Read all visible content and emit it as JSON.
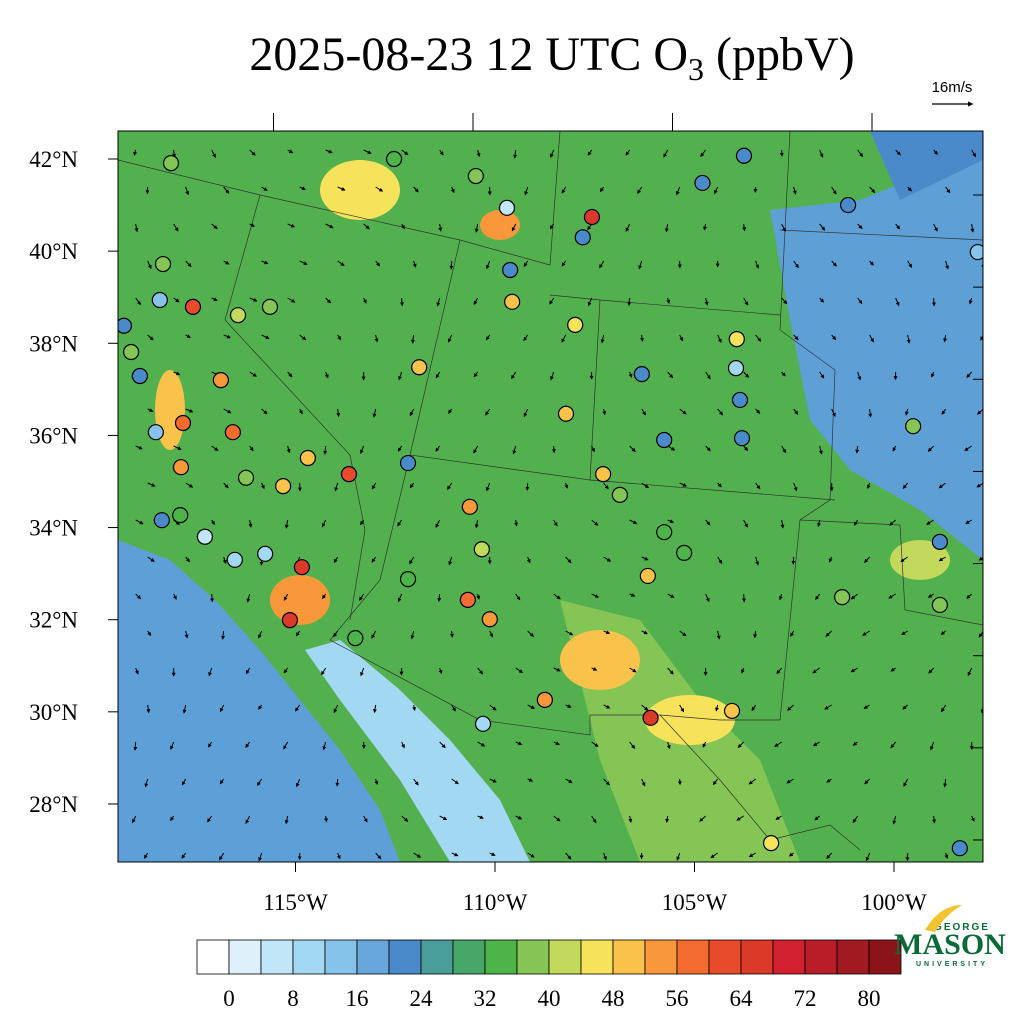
{
  "title": {
    "main": "2025-08-23 12 UTC O",
    "sub": "3",
    "end": " (ppbV)"
  },
  "wind_reference": "16m/s",
  "lat_ticks": [
    {
      "value": 42,
      "label": "42°N"
    },
    {
      "value": 40,
      "label": "40°N"
    },
    {
      "value": 38,
      "label": "38°N"
    },
    {
      "value": 36,
      "label": "36°N"
    },
    {
      "value": 34,
      "label": "34°N"
    },
    {
      "value": 32,
      "label": "32°N"
    },
    {
      "value": 30,
      "label": "30°N"
    },
    {
      "value": 28,
      "label": "28°N"
    }
  ],
  "lon_ticks": [
    {
      "value": -115,
      "label": "115°W"
    },
    {
      "value": -110,
      "label": "110°W"
    },
    {
      "value": -105,
      "label": "105°W"
    },
    {
      "value": -100,
      "label": "100°W"
    }
  ],
  "colorbar": {
    "levels": [
      0,
      4,
      8,
      12,
      16,
      20,
      24,
      28,
      32,
      36,
      40,
      44,
      48,
      52,
      56,
      60,
      64,
      68,
      72,
      76,
      80
    ],
    "ticks": [
      0,
      8,
      16,
      24,
      32,
      40,
      48,
      56,
      64,
      72,
      80
    ],
    "colors": [
      "#ffffff",
      "#ddf1fa",
      "#c0e6f7",
      "#a3d8f3",
      "#86c3ea",
      "#68a7dc",
      "#4a8acb",
      "#4a9e9a",
      "#46a768",
      "#4db44a",
      "#84c556",
      "#c3d95b",
      "#f7e35b",
      "#f9c24b",
      "#f8983b",
      "#f46b2f",
      "#e84b2b",
      "#dc3a28",
      "#d22030",
      "#b91e28",
      "#a11a21",
      "#8b1418"
    ]
  },
  "stations": {
    "lon": [
      -118.12,
      -112.53,
      -110.48,
      -109.7,
      -107.57,
      -107.8,
      -104.8,
      -103.76,
      -101.15,
      -97.9,
      -118.32,
      -117.57,
      -118.4,
      -116.44,
      -115.64,
      -111.9,
      -109.57,
      -109.62,
      -107.99,
      -108.22,
      -106.32,
      -103.94,
      -103.96,
      -99.52,
      -116.87,
      -116.57,
      -116.24,
      -115.31,
      -114.69,
      -113.66,
      -112.18,
      -110.63,
      -110.33,
      -112.18,
      -110.68,
      -110.13,
      -113.5,
      -110.3,
      -108.75,
      -106.1,
      -104.06,
      -103.08,
      -106.17,
      -101.3,
      -98.85,
      -98.85,
      -98.35,
      -114.84,
      -115.14,
      -116.52,
      -115.76,
      -117.27,
      -117.89,
      -118.35,
      -117.87,
      -117.82,
      -118.5,
      -118.9,
      -119.12,
      -119.3,
      -107.29,
      -106.87,
      -105.76,
      -105.26,
      -105.76,
      -103.81,
      -103.86
    ],
    "lat": [
      41.91,
      42.0,
      41.63,
      40.94,
      40.74,
      40.3,
      41.48,
      42.07,
      41.0,
      39.98,
      39.72,
      38.79,
      38.94,
      38.61,
      38.79,
      37.48,
      38.9,
      39.59,
      38.4,
      36.47,
      37.33,
      38.09,
      37.46,
      36.2,
      37.2,
      36.07,
      35.08,
      34.9,
      35.51,
      35.16,
      35.4,
      34.45,
      33.53,
      32.88,
      32.43,
      32.01,
      31.6,
      29.74,
      30.26,
      29.87,
      30.02,
      27.15,
      32.95,
      32.49,
      33.69,
      32.32,
      27.04,
      33.14,
      31.99,
      33.3,
      33.43,
      33.8,
      34.27,
      34.16,
      35.31,
      36.27,
      36.07,
      37.29,
      37.81,
      38.38,
      35.16,
      34.71,
      33.9,
      33.45,
      35.9,
      35.94,
      36.77
    ],
    "values": [
      36,
      34,
      38,
      4,
      66,
      22,
      22,
      20,
      22,
      12,
      38,
      62,
      12,
      40,
      36,
      48,
      50,
      20,
      44,
      48,
      22,
      44,
      8,
      36,
      54,
      56,
      36,
      48,
      50,
      62,
      20,
      54,
      42,
      34,
      56,
      54,
      34,
      10,
      52,
      64,
      48,
      46,
      50,
      36,
      20,
      36,
      22,
      64,
      64,
      8,
      8,
      6,
      34,
      22,
      54,
      56,
      12,
      20,
      36,
      22,
      48,
      36,
      34,
      34,
      22,
      20,
      20
    ]
  },
  "logo": {
    "top": "GEORGE",
    "main": "MASON",
    "bottom": "UNIVERSITY"
  }
}
